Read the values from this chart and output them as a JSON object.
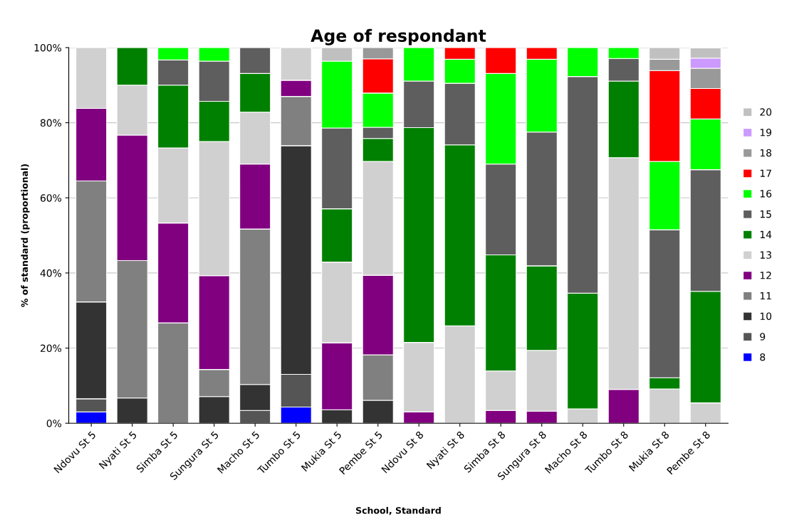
{
  "chart_data": {
    "type": "bar",
    "stacked": true,
    "title": "Age of respondant",
    "xlabel": "School, Standard",
    "ylabel": "% of standard (proportional)",
    "categories": [
      "Ndovu St 5",
      "Nyati St 5",
      "Simba St 5",
      "Sungura St 5",
      "Macho St 5",
      "Tumbo St 5",
      "Mukia St 5",
      "Pembe St 5",
      "Ndovu St 8",
      "Nyati St 8",
      "Simba St 8",
      "Sungura St 8",
      "Macho St 8",
      "Tumbo St 8",
      "Mukia St 8",
      "Pembe St 8"
    ],
    "series": [
      {
        "name": "8",
        "color": "#0000ff",
        "values": [
          3.0,
          0,
          0,
          0,
          0,
          4.3,
          0,
          0,
          0,
          0,
          0,
          0,
          0,
          0,
          0,
          0
        ]
      },
      {
        "name": "9",
        "color": "#555555",
        "values": [
          3.5,
          0,
          0,
          0,
          3.4,
          8.7,
          0,
          0,
          0,
          0,
          0,
          0,
          0,
          0,
          0,
          0
        ]
      },
      {
        "name": "10",
        "color": "#333333",
        "values": [
          25.8,
          6.7,
          0,
          7.1,
          6.9,
          60.9,
          3.6,
          6.1,
          0,
          0,
          0,
          0,
          0,
          0,
          0,
          0
        ]
      },
      {
        "name": "11",
        "color": "#808080",
        "values": [
          32.2,
          36.6,
          26.7,
          7.2,
          41.4,
          13.1,
          0,
          12.1,
          0,
          0,
          0,
          0,
          0,
          0,
          0,
          0
        ]
      },
      {
        "name": "12",
        "color": "#800080",
        "values": [
          19.3,
          33.4,
          26.6,
          25.0,
          17.3,
          4.3,
          17.8,
          21.2,
          3.0,
          0,
          3.4,
          3.2,
          0,
          9.0,
          0,
          0
        ]
      },
      {
        "name": "13",
        "color": "#d0d0d0",
        "values": [
          16.2,
          13.3,
          20.0,
          35.7,
          13.8,
          8.7,
          21.5,
          30.3,
          18.5,
          25.9,
          10.5,
          16.2,
          3.8,
          61.7,
          9.1,
          5.4
        ]
      },
      {
        "name": "14",
        "color": "#008000",
        "values": [
          0,
          10.0,
          16.7,
          10.7,
          10.3,
          0,
          14.2,
          6.1,
          57.2,
          48.2,
          30.9,
          22.5,
          30.8,
          20.4,
          3.0,
          29.7
        ]
      },
      {
        "name": "15",
        "color": "#5e5e5e",
        "values": [
          0,
          0,
          6.7,
          10.7,
          6.9,
          0,
          21.5,
          3.0,
          12.4,
          16.4,
          24.2,
          35.6,
          57.7,
          6.0,
          39.4,
          32.4
        ]
      },
      {
        "name": "16",
        "color": "#00ff00",
        "values": [
          0,
          0,
          3.3,
          3.6,
          0,
          0,
          17.8,
          9.1,
          8.9,
          6.4,
          24.1,
          19.4,
          7.7,
          2.9,
          18.2,
          13.5
        ]
      },
      {
        "name": "17",
        "color": "#ff0000",
        "values": [
          0,
          0,
          0,
          0,
          0,
          0,
          0,
          9.1,
          0,
          3.1,
          6.9,
          3.1,
          0,
          0,
          24.2,
          8.1
        ]
      },
      {
        "name": "18",
        "color": "#999999",
        "values": [
          0,
          0,
          0,
          0,
          0,
          0,
          0,
          3.0,
          0,
          0,
          0,
          0,
          0,
          0,
          3.0,
          5.4
        ]
      },
      {
        "name": "19",
        "color": "#cc99ff",
        "values": [
          0,
          0,
          0,
          0,
          0,
          0,
          0,
          0,
          0,
          0,
          0,
          0,
          0,
          0,
          0,
          2.7
        ]
      },
      {
        "name": "20",
        "color": "#c0c0c0",
        "values": [
          0,
          0,
          0,
          0,
          0,
          0,
          3.6,
          0,
          0,
          0,
          0,
          0,
          0,
          0,
          3.1,
          2.7
        ]
      }
    ],
    "ylim": [
      0,
      100
    ],
    "yticks": [
      {
        "value": 0,
        "label": "0%"
      },
      {
        "value": 20,
        "label": "20%"
      },
      {
        "value": 40,
        "label": "40%"
      },
      {
        "value": 60,
        "label": "60%"
      },
      {
        "value": 80,
        "label": "80%"
      },
      {
        "value": 100,
        "label": "100%"
      }
    ],
    "grid": "y",
    "legend": "right"
  }
}
